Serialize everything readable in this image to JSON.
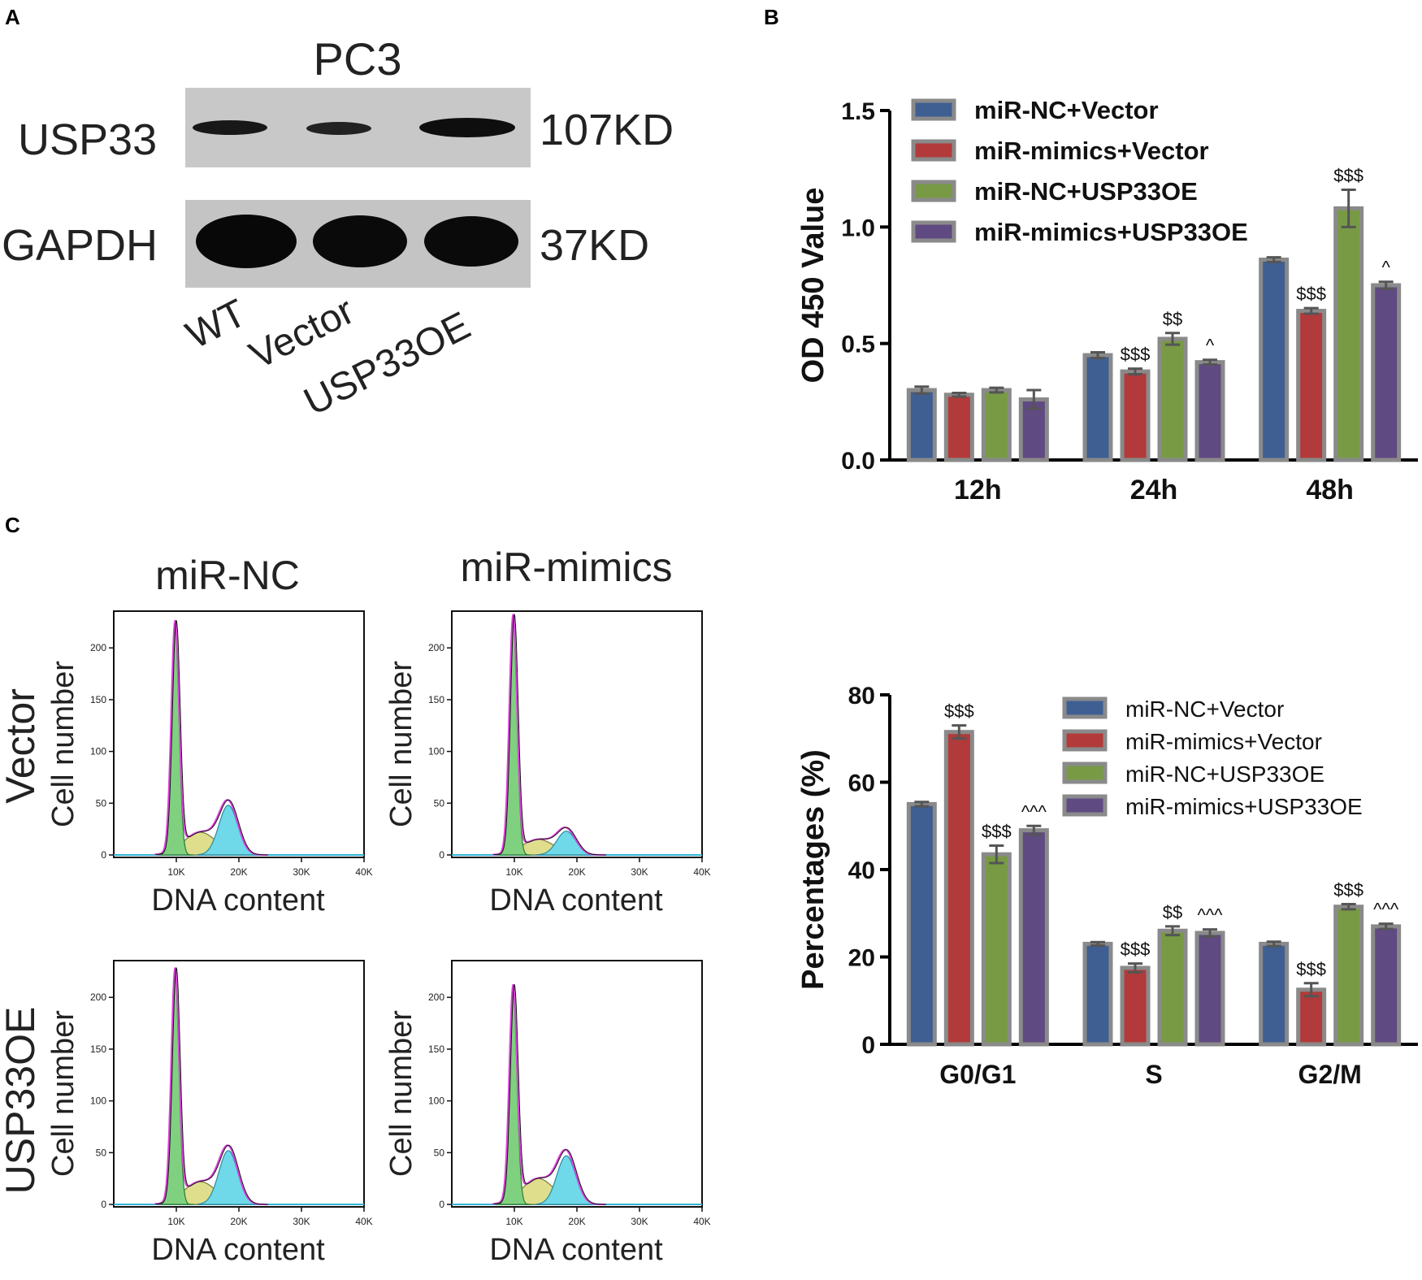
{
  "panel_labels": {
    "a": "A",
    "b": "B",
    "c": "C"
  },
  "colors": {
    "blue": "#3f5f92",
    "red": "#b23a3a",
    "green": "#789a45",
    "purple": "#604a82",
    "bar_edge": "#8a8a8a",
    "flow_g1": "#7fd17f",
    "flow_s": "#dede8c",
    "flow_g2": "#6fd9ea",
    "flow_fit": "#e040e0"
  },
  "western_blot": {
    "title": "PC3",
    "rows": [
      {
        "protein": "USP33",
        "size": "107KD"
      },
      {
        "protein": "GAPDH",
        "size": "37KD"
      }
    ],
    "lanes": [
      "WT",
      "Vector",
      "USP33OE"
    ]
  },
  "chart_data": [
    {
      "id": "cck8",
      "type": "bar",
      "title": "",
      "xlabel": "",
      "ylabel": "OD 450 Value",
      "ylim": [
        0,
        1.5
      ],
      "yticks": [
        "0.0",
        "0.5",
        "1.0",
        "1.5"
      ],
      "categories": [
        "12h",
        "24h",
        "48h"
      ],
      "legend_position": "top-left",
      "series": [
        {
          "name": "miR-NC+Vector",
          "values": [
            0.3,
            0.45,
            0.86
          ],
          "errors": [
            0.015,
            0.012,
            0.01
          ],
          "annotations": [
            "",
            "",
            ""
          ]
        },
        {
          "name": "miR-mimics+Vector",
          "values": [
            0.28,
            0.38,
            0.64
          ],
          "errors": [
            0.008,
            0.012,
            0.012
          ],
          "annotations": [
            "",
            "$$$",
            "$$$"
          ]
        },
        {
          "name": "miR-NC+USP33OE",
          "values": [
            0.3,
            0.52,
            1.08
          ],
          "errors": [
            0.01,
            0.025,
            0.08
          ],
          "annotations": [
            "",
            "$$",
            "$$$"
          ]
        },
        {
          "name": "miR-mimics+USP33OE",
          "values": [
            0.26,
            0.42,
            0.75
          ],
          "errors": [
            0.04,
            0.01,
            0.015
          ],
          "annotations": [
            "",
            "^",
            "^"
          ]
        }
      ]
    },
    {
      "id": "cellcycle",
      "type": "bar",
      "title": "",
      "xlabel": "",
      "ylabel": "Percentages (%)",
      "ylim": [
        0,
        80
      ],
      "yticks": [
        "0",
        "20",
        "40",
        "60",
        "80"
      ],
      "categories": [
        "G0/G1",
        "S",
        "G2/M"
      ],
      "legend_position": "top-right",
      "series": [
        {
          "name": "miR-NC+Vector",
          "values": [
            55.0,
            23.0,
            23.0
          ],
          "errors": [
            0.5,
            0.4,
            0.5
          ],
          "annotations": [
            "",
            "",
            ""
          ]
        },
        {
          "name": "miR-mimics+Vector",
          "values": [
            71.5,
            17.5,
            12.5
          ],
          "errors": [
            1.5,
            1.0,
            1.5
          ],
          "annotations": [
            "$$$",
            "$$$",
            "$$$"
          ]
        },
        {
          "name": "miR-NC+USP33OE",
          "values": [
            43.5,
            26.0,
            31.5
          ],
          "errors": [
            2.0,
            1.0,
            0.6
          ],
          "annotations": [
            "$$$",
            "$$",
            "$$$"
          ]
        },
        {
          "name": "miR-mimics+USP33OE",
          "values": [
            49.0,
            25.5,
            27.0
          ],
          "errors": [
            1.0,
            0.8,
            0.6
          ],
          "annotations": [
            "^^^",
            "^^^",
            "^^^"
          ]
        }
      ]
    },
    {
      "id": "flow-histograms",
      "type": "area",
      "column_headers": [
        "miR-NC",
        "miR-mimics"
      ],
      "row_headers": [
        "Vector",
        "USP33OE"
      ],
      "xlabel": "DNA content",
      "ylabel": "Cell number",
      "xticks": [
        "10K",
        "20K",
        "30K",
        "40K"
      ],
      "yticks": [
        "0",
        "50",
        "100",
        "150",
        "200"
      ],
      "xlim": [
        0,
        40000
      ],
      "ylim": [
        0,
        230
      ],
      "panels": [
        {
          "row": "Vector",
          "col": "miR-NC",
          "g1_peak": 220,
          "g2_peak": 48,
          "s_level": 22
        },
        {
          "row": "Vector",
          "col": "miR-mimics",
          "g1_peak": 228,
          "g2_peak": 23,
          "s_level": 15
        },
        {
          "row": "USP33OE",
          "col": "miR-NC",
          "g1_peak": 222,
          "g2_peak": 52,
          "s_level": 22
        },
        {
          "row": "USP33OE",
          "col": "miR-mimics",
          "g1_peak": 205,
          "g2_peak": 47,
          "s_level": 25
        }
      ]
    }
  ]
}
